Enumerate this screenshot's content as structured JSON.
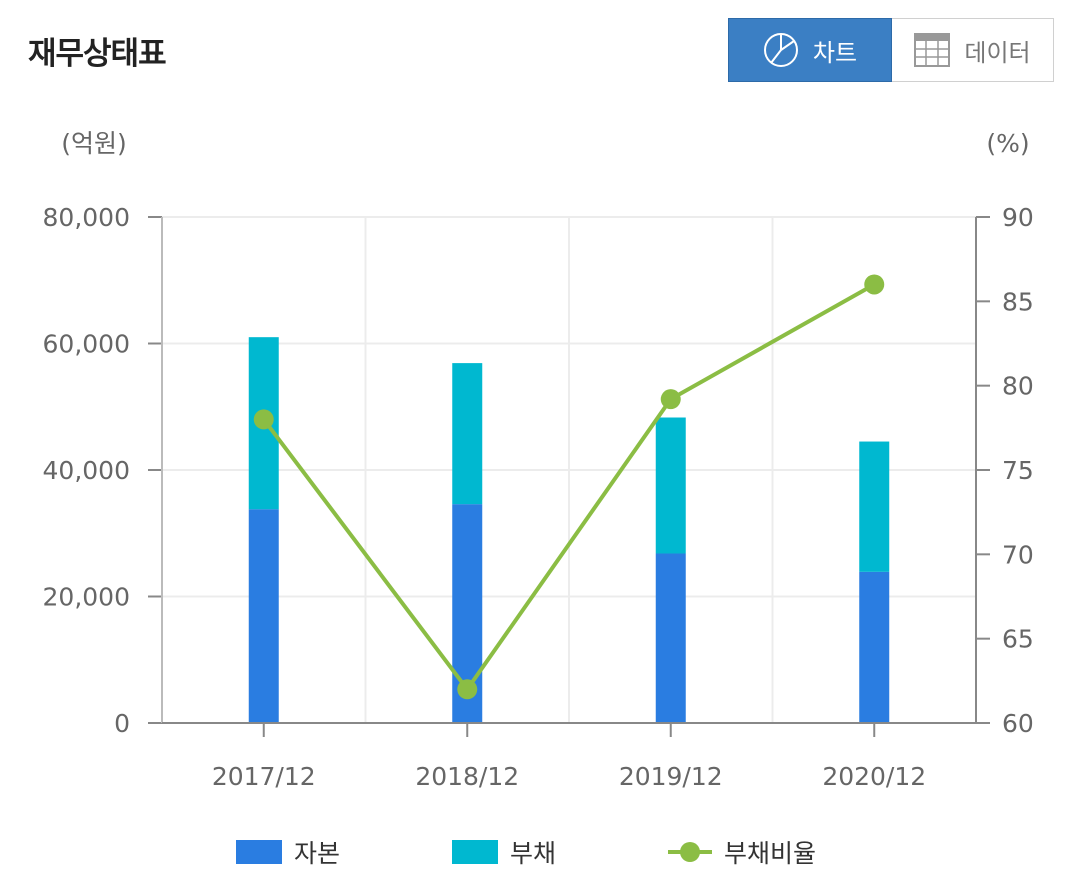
{
  "header": {
    "title": "재무상태표",
    "chart_button": "차트",
    "data_button": "데이터"
  },
  "colors": {
    "capital": "#2a7de1",
    "liability": "#00b8d0",
    "ratio": "#8bbd44",
    "active_button": "#3b7fc4"
  },
  "icons": {
    "chart_button": "pie-chart-icon",
    "data_button": "table-grid-icon"
  },
  "chart_data": {
    "type": "bar",
    "stacked": true,
    "categories": [
      "2017/12",
      "2018/12",
      "2019/12",
      "2020/12"
    ],
    "series": [
      {
        "name": "자본",
        "type": "bar",
        "axis": "left",
        "values": [
          33800,
          34600,
          26800,
          23900
        ]
      },
      {
        "name": "부채",
        "type": "bar",
        "axis": "left",
        "values": [
          27200,
          22300,
          21500,
          20600
        ]
      },
      {
        "name": "부채비율",
        "type": "line",
        "axis": "right",
        "values": [
          78,
          62,
          79.2,
          86
        ]
      }
    ],
    "ylabel_left": "(억원)",
    "ylabel_right": "(%)",
    "ylim_left": [
      0,
      80000
    ],
    "ylim_right": [
      60,
      90
    ],
    "yticks_left": [
      "0",
      "20,000",
      "40,000",
      "60,000",
      "80,000"
    ],
    "yticks_right": [
      "60",
      "65",
      "70",
      "75",
      "80",
      "85",
      "90"
    ],
    "grid": true,
    "legend_position": "bottom"
  }
}
